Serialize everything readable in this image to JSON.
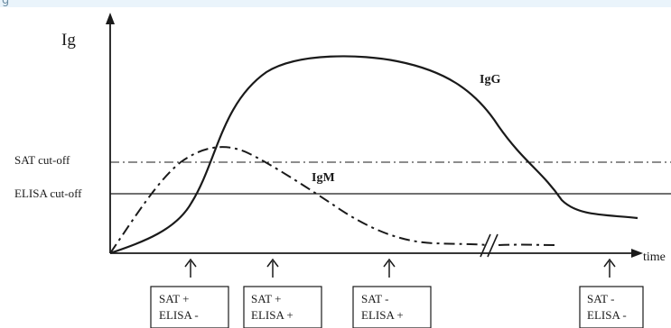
{
  "header_fragment": "g",
  "y_axis_label": "Ig",
  "x_axis_label": "time",
  "thresholds": [
    {
      "label": "SAT cut-off"
    },
    {
      "label": "ELISA cut-off"
    }
  ],
  "curves": [
    {
      "label": "IgG"
    },
    {
      "label": "IgM"
    }
  ],
  "stages": [
    {
      "line1": "SAT +",
      "line2": "ELISA -"
    },
    {
      "line1": "SAT +",
      "line2": "ELISA +"
    },
    {
      "line1": "SAT -",
      "line2": "ELISA +"
    },
    {
      "line1": "SAT -",
      "line2": "ELISA -"
    }
  ]
}
